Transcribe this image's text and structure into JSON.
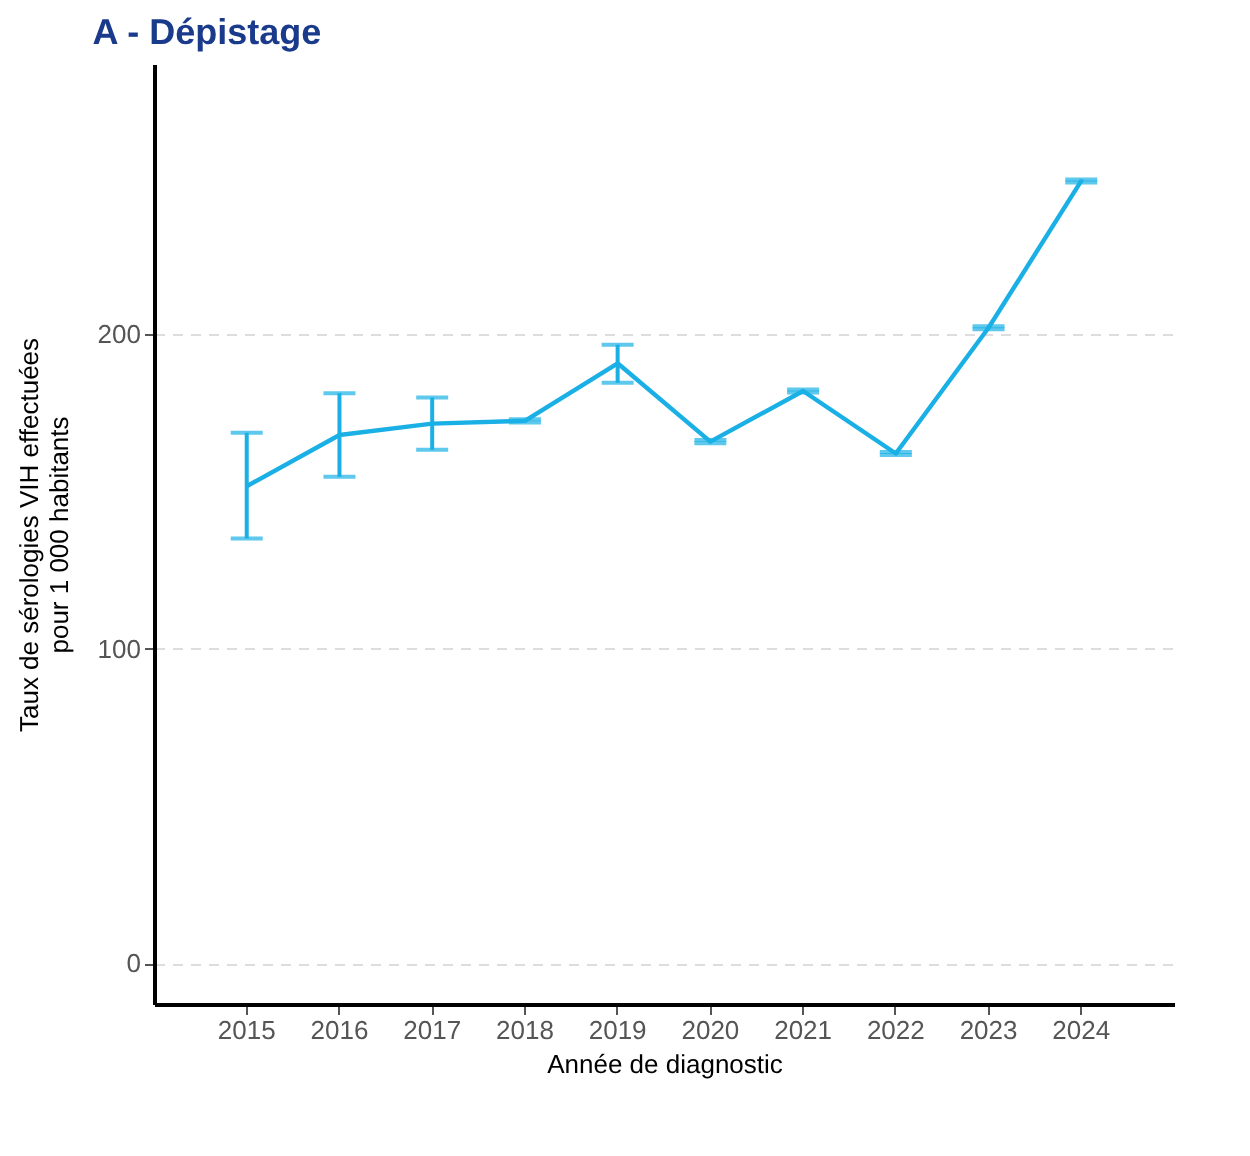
{
  "chart_data": {
    "type": "line",
    "title": "A - Dépistage",
    "xlabel": "Année de diagnostic",
    "ylabel": "Taux de sérologies VIH effectuées\npour 1 000 habitants",
    "categories": [
      "2015",
      "2016",
      "2017",
      "2018",
      "2019",
      "2020",
      "2021",
      "2022",
      "2023",
      "2024"
    ],
    "series": [
      {
        "color": "#1ab0e6",
        "values": [
          151.7,
          168,
          171.6,
          172.5,
          190.8,
          165.9,
          182,
          162.1,
          202.1,
          248.8
        ],
        "errors": [
          [
            135.1,
            168.7
          ],
          [
            154.7,
            181.3
          ],
          [
            163.3,
            179.9
          ],
          [
            172,
            173
          ],
          [
            184.6,
            196.7
          ],
          [
            165.4,
            166.4
          ],
          [
            181.5,
            182.5
          ],
          [
            161.6,
            162.6
          ],
          [
            201.6,
            202.6
          ],
          [
            248.3,
            249.3
          ]
        ]
      }
    ],
    "ylim": [
      -13,
      286
    ],
    "yticks": [
      0,
      100,
      200
    ],
    "grid": "y",
    "marker": "none",
    "line_style": "solid"
  }
}
